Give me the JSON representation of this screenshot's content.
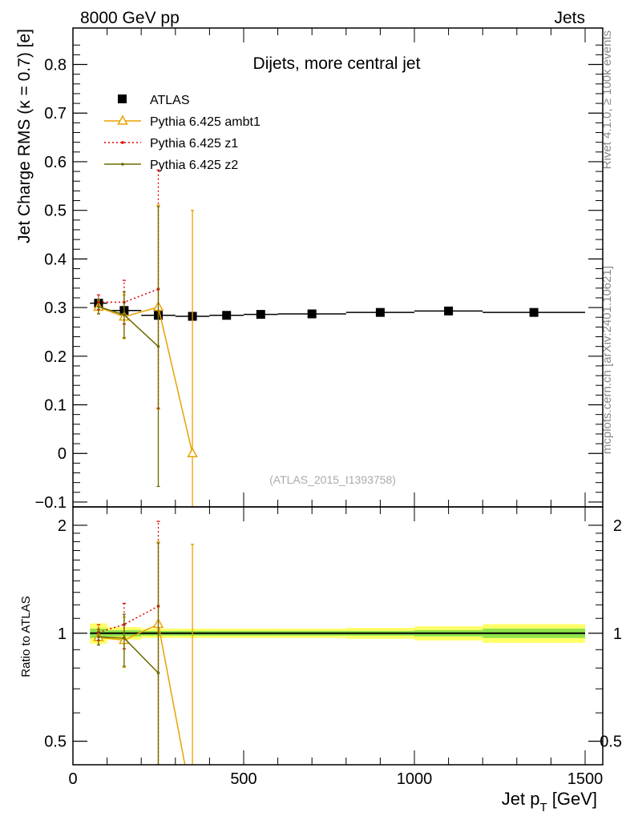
{
  "header": {
    "left": "8000 GeV pp",
    "right": "Jets"
  },
  "side_text": {
    "rivet": "Rivet 4.1.0, ≥ 100k events",
    "source": "mcplots.cern.ch [arXiv:2401.10621]"
  },
  "chart_data": [
    {
      "panel": "main",
      "type": "scatter",
      "title": "Dijets, more central jet",
      "ylabel": "Jet Charge RMS (κ = 0.7) [e]",
      "watermark": "(ATLAS_2015_I1393758)",
      "xlim": [
        0,
        1500
      ],
      "ylim": [
        -0.11,
        0.875
      ],
      "yticks": [
        -0.1,
        0,
        0.1,
        0.2,
        0.3,
        0.4,
        0.5,
        0.6,
        0.7,
        0.8
      ],
      "ytick_labels": [
        "−0.1",
        "0",
        "0.1",
        "0.2",
        "0.3",
        "0.4",
        "0.5",
        "0.6",
        "0.7",
        "0.8"
      ],
      "legend_position": "top-left",
      "series": [
        {
          "name": "ATLAS",
          "style": "data",
          "color": "#000000",
          "x": [
            75,
            150,
            250,
            350,
            450,
            550,
            700,
            900,
            1100,
            1350
          ],
          "xerr": [
            25,
            50,
            50,
            50,
            50,
            50,
            100,
            100,
            100,
            150
          ],
          "y": [
            0.309,
            0.294,
            0.284,
            0.282,
            0.284,
            0.286,
            0.287,
            0.29,
            0.293,
            0.29
          ],
          "yerr": [
            0.01,
            0.006,
            0.004,
            0.004,
            0.004,
            0.004,
            0.004,
            0.004,
            0.005,
            0.006
          ]
        },
        {
          "name": "Pythia 6.425 ambt1",
          "style": "line-triangle",
          "color": "#e8a200",
          "x": [
            75,
            150,
            250,
            350
          ],
          "y": [
            0.301,
            0.281,
            0.301,
            0.0
          ],
          "yerr": [
            0.014,
            0.045,
            0.21,
            0.5
          ]
        },
        {
          "name": "Pythia 6.425 z1",
          "style": "dotted",
          "color": "#dd0000",
          "x": [
            75,
            150,
            250
          ],
          "y": [
            0.311,
            0.311,
            0.338
          ],
          "yerr": [
            0.015,
            0.045,
            0.245
          ]
        },
        {
          "name": "Pythia 6.425 z2",
          "style": "line-dot",
          "color": "#6b6b00",
          "x": [
            75,
            150,
            250
          ],
          "y": [
            0.302,
            0.285,
            0.22
          ],
          "yerr": [
            0.015,
            0.047,
            0.288
          ]
        }
      ]
    },
    {
      "panel": "ratio",
      "type": "line",
      "ylabel": "Ratio to ATLAS",
      "xlabel": "Jet p_T [GeV]",
      "xlabel_main": "Jet p",
      "xlabel_sub": "T",
      "xlabel_unit": " [GeV]",
      "xlim": [
        0,
        1500
      ],
      "ylim": [
        0.43,
        2.25
      ],
      "yscale": "log",
      "yticks": [
        0.5,
        1,
        2
      ],
      "ytick_labels": [
        "0.5",
        "1",
        "2"
      ],
      "xticks": [
        0,
        500,
        1000,
        1500
      ],
      "xtick_labels": [
        "0",
        "500",
        "1000",
        "1500"
      ],
      "band": {
        "x_edges": [
          50,
          100,
          200,
          300,
          400,
          500,
          600,
          800,
          1000,
          1200,
          1500
        ],
        "inner": [
          0.03,
          0.02,
          0.015,
          0.015,
          0.015,
          0.015,
          0.015,
          0.015,
          0.02,
          0.03
        ],
        "outer": [
          0.065,
          0.04,
          0.03,
          0.03,
          0.03,
          0.03,
          0.03,
          0.035,
          0.045,
          0.06
        ],
        "inner_color": "#33cc33",
        "outer_color": "#ffff66"
      },
      "series": [
        {
          "name": "Pythia 6.425 ambt1",
          "color": "#e8a200",
          "x": [
            75,
            150,
            250,
            350
          ],
          "y": [
            0.974,
            0.956,
            1.06,
            0.0
          ],
          "yerr": [
            0.045,
            0.153,
            0.74,
            1.77
          ]
        },
        {
          "name": "Pythia 6.425 z1",
          "color": "#dd0000",
          "x": [
            75,
            150,
            250
          ],
          "y": [
            1.006,
            1.058,
            1.19
          ],
          "yerr": [
            0.05,
            0.153,
            0.86
          ]
        },
        {
          "name": "Pythia 6.425 z2",
          "color": "#6b6b00",
          "x": [
            75,
            150,
            250
          ],
          "y": [
            0.977,
            0.969,
            0.775
          ],
          "yerr": [
            0.05,
            0.16,
            1.01
          ]
        }
      ]
    }
  ]
}
